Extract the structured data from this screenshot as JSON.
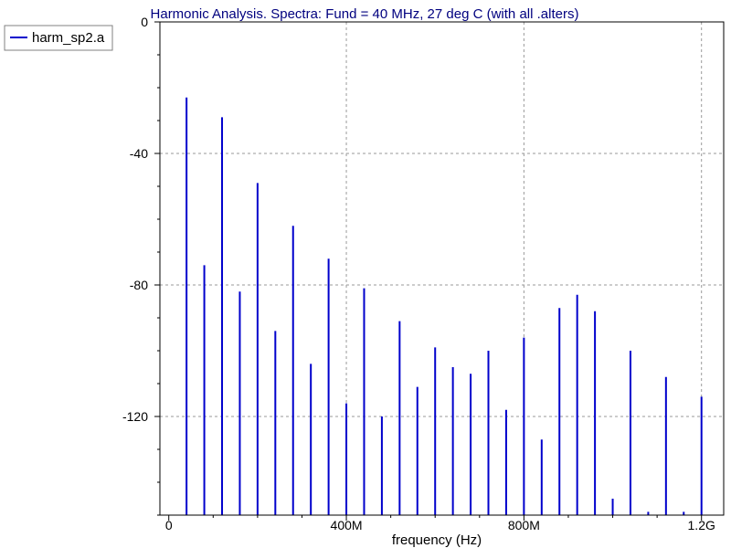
{
  "chart_data": {
    "type": "bar",
    "title": "Harmonic Analysis. Spectra: Fund = 40 MHz, 27 deg C (with all .alters)",
    "xlabel": "frequency (Hz)",
    "ylabel": "",
    "x_unit": "Hz",
    "xlim": [
      -20000000,
      1250000000
    ],
    "ylim": [
      -150,
      0
    ],
    "x_ticks": [
      {
        "value": 0,
        "label": "0"
      },
      {
        "value": 400000000,
        "label": "400M"
      },
      {
        "value": 800000000,
        "label": "800M"
      },
      {
        "value": 1200000000,
        "label": "1.2G"
      }
    ],
    "y_ticks": [
      {
        "value": 0,
        "label": "0"
      },
      {
        "value": -40,
        "label": "-40"
      },
      {
        "value": -80,
        "label": "-80"
      },
      {
        "value": -120,
        "label": "-120"
      }
    ],
    "grid": true,
    "legend_position": "top-left",
    "series": [
      {
        "name": "harm_sp2.a",
        "color": "#0000cc",
        "x": [
          40000000,
          80000000,
          120000000,
          160000000,
          200000000,
          240000000,
          280000000,
          320000000,
          360000000,
          400000000,
          440000000,
          480000000,
          520000000,
          560000000,
          600000000,
          640000000,
          680000000,
          720000000,
          760000000,
          800000000,
          840000000,
          880000000,
          920000000,
          960000000,
          1000000000,
          1040000000,
          1080000000,
          1120000000,
          1160000000,
          1200000000
        ],
        "values": [
          -23,
          -74,
          -29,
          -82,
          -49,
          -94,
          -62,
          -104,
          -72,
          -116,
          -81,
          -120,
          -91,
          -111,
          -99,
          -105,
          -107,
          -100,
          -118,
          -96,
          -127,
          -87,
          -83,
          -88,
          -145,
          -100,
          -149,
          -108,
          -149,
          -114
        ]
      }
    ]
  }
}
